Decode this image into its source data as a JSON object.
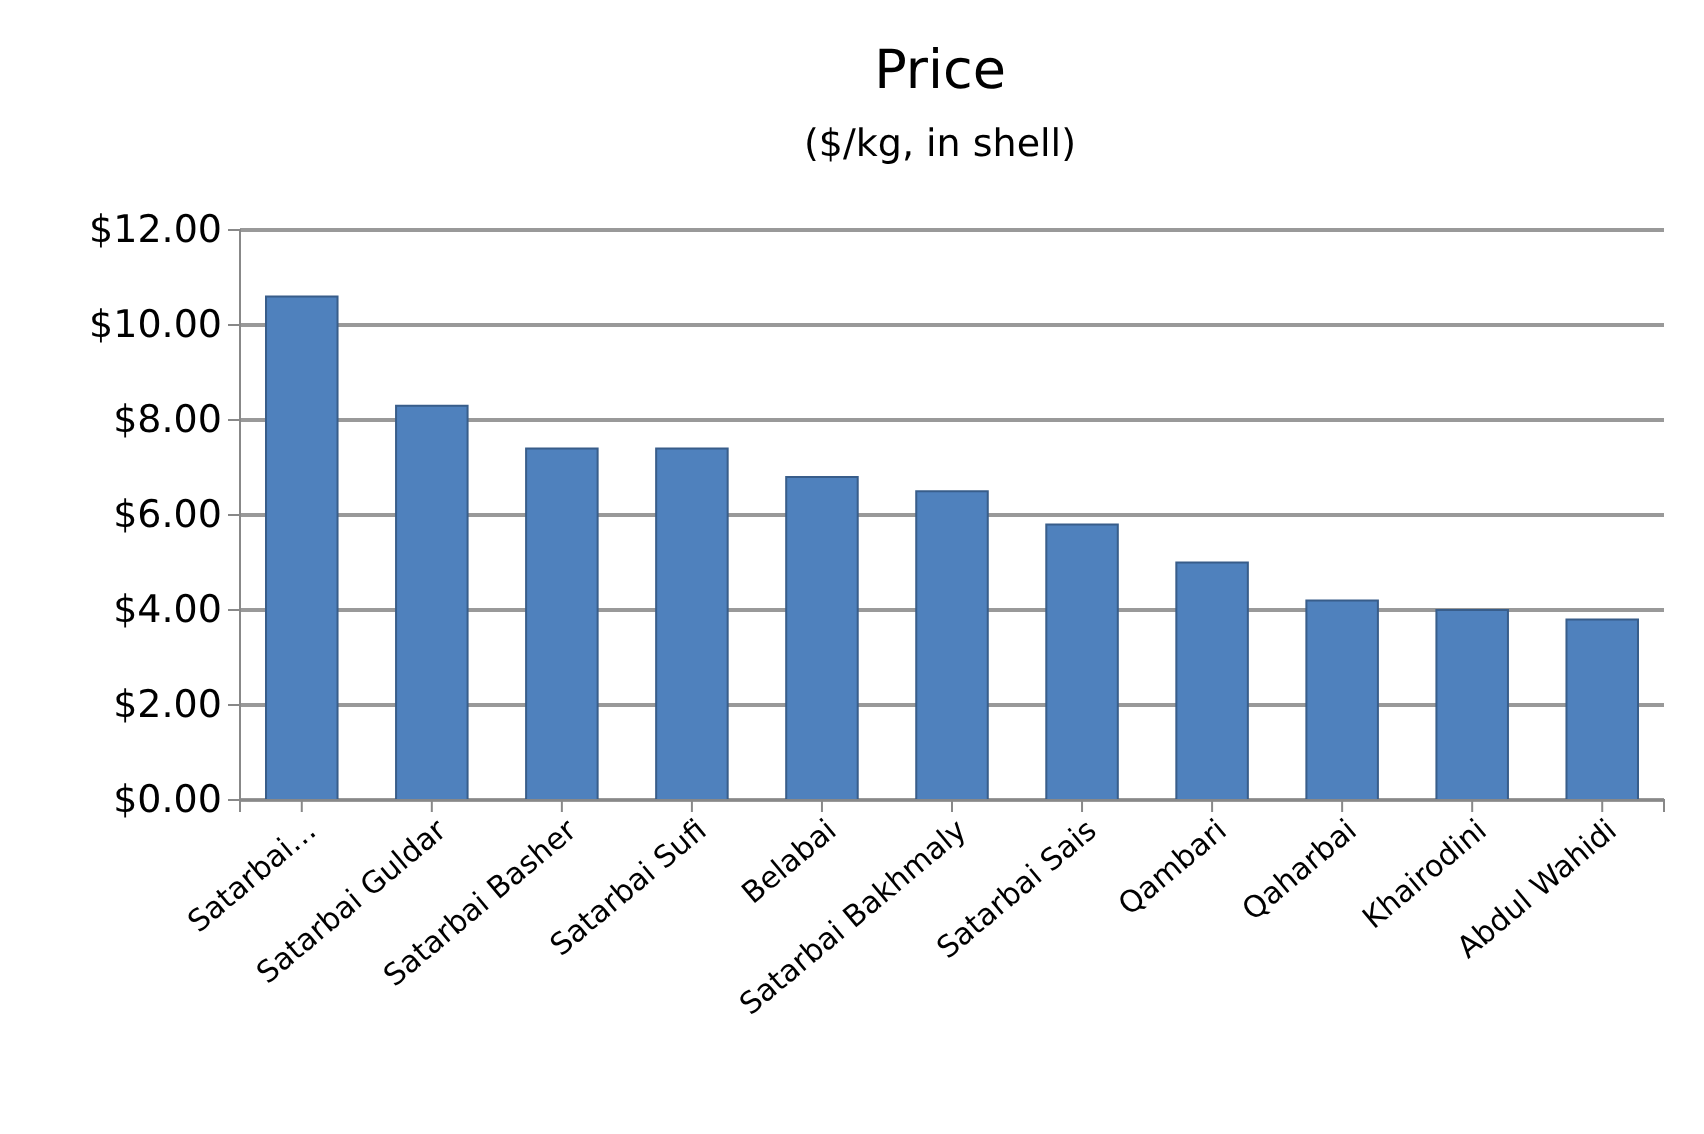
{
  "chart_data": {
    "type": "bar",
    "title": "Price",
    "subtitle": "($/kg, in shell)",
    "categories": [
      "Satarbai…",
      "Satarbai Guldar",
      "Satarbai Basher",
      "Satarbai Sufi",
      "Belabai",
      "Satarbai Bakhmaly",
      "Satarbai Sais",
      "Qambari",
      "Qaharbai",
      "Khairodini",
      "Abdul Wahidi"
    ],
    "values": [
      10.6,
      8.3,
      7.4,
      7.4,
      6.8,
      6.5,
      5.8,
      5.0,
      4.2,
      4.0,
      3.8
    ],
    "color": "#4f81bd",
    "ylim": [
      0,
      12
    ],
    "yticks": [
      {
        "value": 0,
        "label": "$0.00"
      },
      {
        "value": 2,
        "label": "$2.00"
      },
      {
        "value": 4,
        "label": "$4.00"
      },
      {
        "value": 6,
        "label": "$6.00"
      },
      {
        "value": 8,
        "label": "$8.00"
      },
      {
        "value": 10,
        "label": "$10.00"
      },
      {
        "value": 12,
        "label": "$12.00"
      }
    ],
    "grid": "y"
  }
}
